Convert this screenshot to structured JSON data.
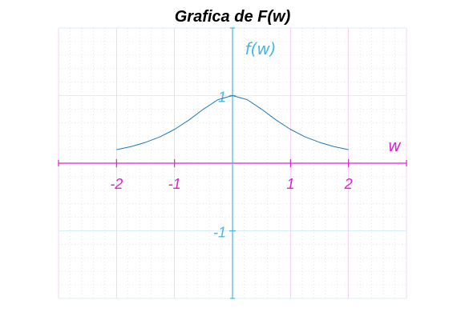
{
  "chart_data": {
    "type": "line",
    "title": "Grafica de F(w)",
    "xlabel": "w",
    "ylabel": "f(w)",
    "xlim": [
      -3,
      3
    ],
    "ylim": [
      -2,
      2
    ],
    "x_ticks": [
      -2,
      -1,
      1,
      2
    ],
    "x_tick_labels": [
      "-2",
      "-1",
      "1",
      "2"
    ],
    "y_ticks": [
      1,
      -1
    ],
    "y_tick_labels": [
      "1",
      "-1"
    ],
    "grid": true,
    "series": [
      {
        "x": [
          -2,
          -1.75,
          -1.5,
          -1.25,
          -1,
          -0.75,
          -0.5,
          -0.25,
          0,
          0.25,
          0.5,
          0.75,
          1,
          1.25,
          1.5,
          1.75,
          2
        ],
        "y": [
          0.2,
          0.246,
          0.308,
          0.39,
          0.5,
          0.64,
          0.8,
          0.941,
          1,
          0.941,
          0.8,
          0.64,
          0.5,
          0.39,
          0.308,
          0.246,
          0.2
        ],
        "color": "#1f77b4"
      }
    ],
    "colors": {
      "x_axis": "#e020d0",
      "y_axis": "#44b8e0",
      "curve": "#1f77b4",
      "grid_x": "#f0b8f0",
      "grid_y": "#b8e0f0",
      "title": "#000000"
    }
  }
}
